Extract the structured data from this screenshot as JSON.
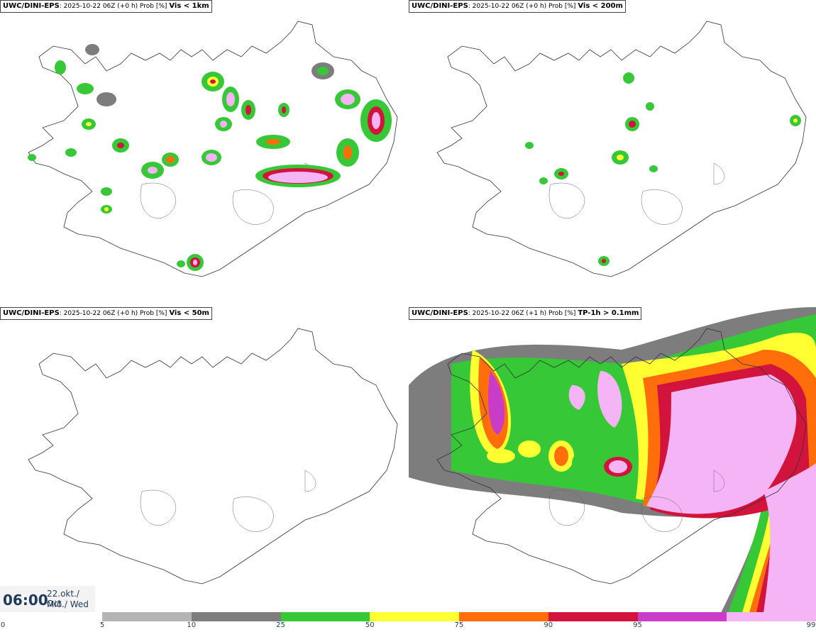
{
  "panels": [
    {
      "model": "UWC/DINI-EPS",
      "meta": ": 2025-10-22 06Z (+0 h) Prob [%]",
      "variable": "Vis < 1km"
    },
    {
      "model": "UWC/DINI-EPS",
      "meta": ": 2025-10-22 06Z (+0 h) Prob [%]",
      "variable": "Vis < 200m"
    },
    {
      "model": "UWC/DINI-EPS",
      "meta": ": 2025-10-22 06Z (+0 h) Prob [%]",
      "variable": "Vis < 50m"
    },
    {
      "model": "UWC/DINI-EPS",
      "meta": ": 2025-10-22 06Z (+1 h) Prob [%]",
      "variable": "TP-1h > 0.1mm"
    }
  ],
  "time": {
    "clock": "06:00",
    "date_line": "22.okt./ Oct",
    "day_line": "Mið./ Wed"
  },
  "legend": {
    "ticks": [
      "0",
      "5",
      "10",
      "25",
      "50",
      "75",
      "90",
      "95",
      "99"
    ],
    "colors": [
      "#b4b4b4",
      "#7d7d7d",
      "#37c837",
      "#ffff32",
      "#ff6e0a",
      "#d2143c",
      "#c83cc8",
      "#f5b4f5"
    ]
  }
}
